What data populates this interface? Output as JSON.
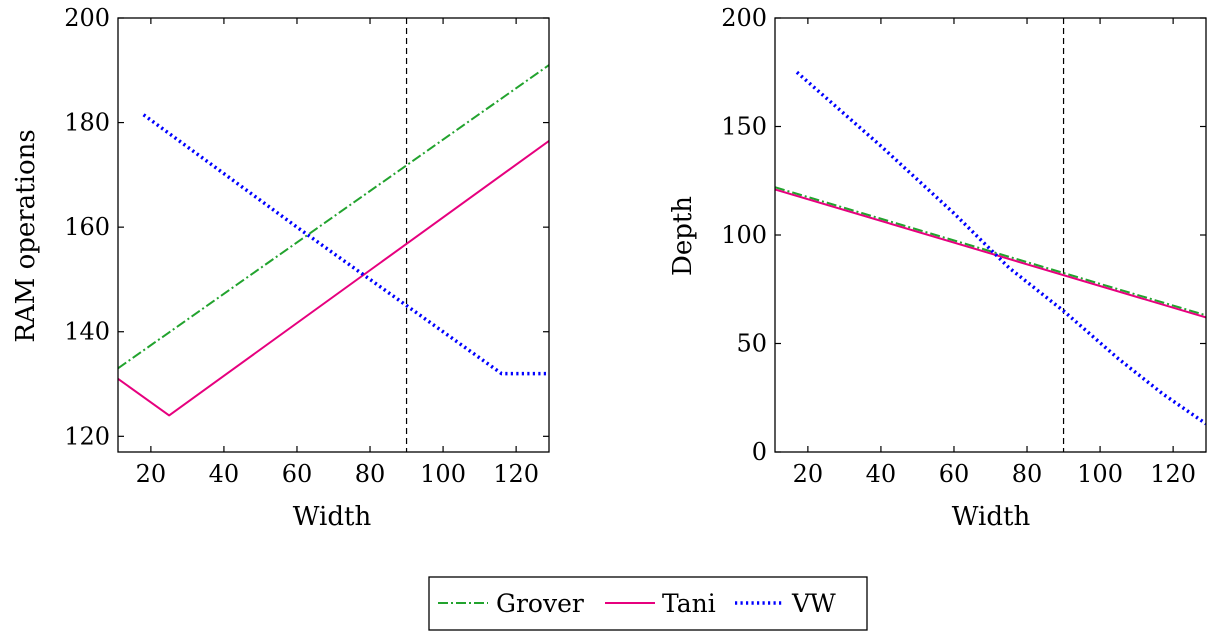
{
  "chart_data": [
    {
      "type": "line",
      "xlabel": "Width",
      "ylabel": "RAM operations",
      "xlim": [
        11,
        129
      ],
      "ylim": [
        117,
        200
      ],
      "xticks": [
        20,
        40,
        60,
        80,
        100,
        120
      ],
      "yticks": [
        120,
        140,
        160,
        180,
        200
      ],
      "vline": 90,
      "grid": false,
      "series": [
        {
          "name": "Grover",
          "x": [
            11,
            129
          ],
          "y": [
            133,
            191
          ]
        },
        {
          "name": "Tani",
          "x": [
            11,
            25,
            129
          ],
          "y": [
            131,
            124,
            176.5
          ]
        },
        {
          "name": "VW",
          "x": [
            18,
            60,
            90,
            116,
            129
          ],
          "y": [
            181.5,
            160,
            145,
            132,
            132
          ]
        }
      ]
    },
    {
      "type": "line",
      "xlabel": "Width",
      "ylabel": "Depth",
      "xlim": [
        11,
        129
      ],
      "ylim": [
        0,
        200
      ],
      "xticks": [
        20,
        40,
        60,
        80,
        100,
        120
      ],
      "yticks": [
        0,
        50,
        100,
        150,
        200
      ],
      "vline": 90,
      "grid": false,
      "series": [
        {
          "name": "Grover",
          "x": [
            11,
            129
          ],
          "y": [
            122,
            63
          ]
        },
        {
          "name": "Tani",
          "x": [
            11,
            129
          ],
          "y": [
            121,
            62
          ]
        },
        {
          "name": "VW",
          "x": [
            17,
            40,
            60,
            75,
            90,
            105,
            117,
            129
          ],
          "y": [
            175,
            141,
            110,
            85,
            65,
            43,
            27,
            13
          ]
        }
      ]
    }
  ],
  "legend": {
    "placement": "bottom-center",
    "entries": [
      {
        "name": "Grover",
        "color": "#22a32e",
        "style": "dash-dot"
      },
      {
        "name": "Tani",
        "color": "#e6007e",
        "style": "solid"
      },
      {
        "name": "VW",
        "color": "#0000ff",
        "style": "dotted"
      }
    ]
  }
}
